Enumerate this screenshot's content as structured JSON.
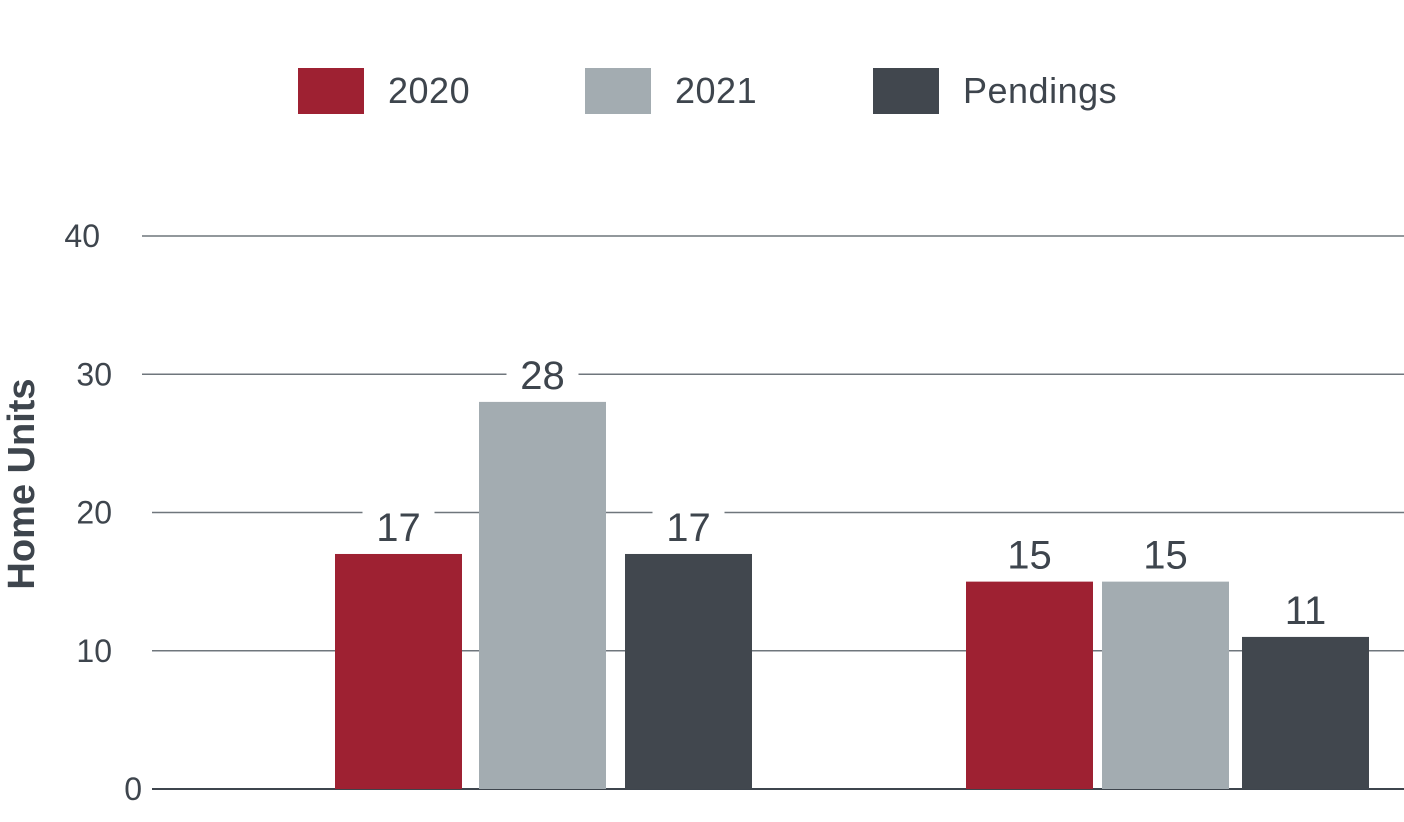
{
  "chart_data": {
    "type": "bar",
    "title": "",
    "xlabel": "",
    "ylabel": "Home Units",
    "ylim": [
      0,
      40
    ],
    "yticks": [
      0,
      10,
      20,
      30,
      40
    ],
    "grid": true,
    "legend_position": "top-center",
    "categories": [
      "",
      ""
    ],
    "series": [
      {
        "name": "2020",
        "color": "#9e2132",
        "values": [
          17,
          15
        ],
        "labels": [
          "17",
          "15"
        ]
      },
      {
        "name": "2021",
        "color": "#a3acb1",
        "values": [
          28,
          15
        ],
        "labels": [
          "28",
          "15"
        ]
      },
      {
        "name": "Pendings",
        "color": "#41474e",
        "values": [
          17,
          11
        ],
        "labels": [
          "17",
          "11"
        ]
      }
    ]
  }
}
